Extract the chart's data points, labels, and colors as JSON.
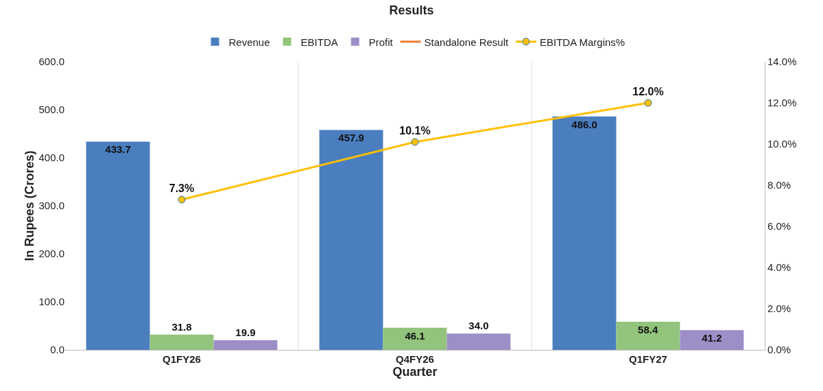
{
  "chart_data": {
    "type": "bar",
    "title": "Results",
    "xlabel": "Quarter",
    "ylabel": "In Rupees (Crores)",
    "categories": [
      "Q1FY26",
      "Q4FY26",
      "Q1FY27"
    ],
    "series": [
      {
        "name": "Revenue",
        "color": "#4a7ebf",
        "values": [
          433.7,
          457.9,
          486.0
        ],
        "value_labels": [
          "433.7",
          "457.9",
          "486.0"
        ]
      },
      {
        "name": "EBITDA",
        "color": "#93c47d",
        "values": [
          31.8,
          46.1,
          58.4
        ],
        "value_labels": [
          "31.8",
          "46.1",
          "58.4"
        ]
      },
      {
        "name": "Profit",
        "color": "#9d8ec7",
        "values": [
          19.9,
          34.0,
          41.2
        ],
        "value_labels": [
          "19.9",
          "34.0",
          "41.2"
        ]
      },
      {
        "name": "Standalone Result",
        "type": "line",
        "color": "#ed7d31",
        "values": [
          null,
          null,
          null
        ]
      },
      {
        "name": "EBITDA Margins%",
        "type": "line",
        "axis": "y2",
        "color": "#ffc000",
        "marker": "circle",
        "values": [
          7.3,
          10.1,
          12.0
        ],
        "value_labels": [
          "7.3%",
          "10.1%",
          "12.0%"
        ]
      }
    ],
    "ylim": [
      0,
      600
    ],
    "yticks": [
      {
        "value": 0,
        "label": "0.0"
      },
      {
        "value": 100,
        "label": "100.0"
      },
      {
        "value": 200,
        "label": "200.0"
      },
      {
        "value": 300,
        "label": "300.0"
      },
      {
        "value": 400,
        "label": "400.0"
      },
      {
        "value": 500,
        "label": "500.0"
      },
      {
        "value": 600,
        "label": "600.0"
      }
    ],
    "y2lim": [
      0,
      14
    ],
    "y2ticks": [
      {
        "value": 0,
        "label": "0.0%"
      },
      {
        "value": 2,
        "label": "2.0%"
      },
      {
        "value": 4,
        "label": "4.0%"
      },
      {
        "value": 6,
        "label": "6.0%"
      },
      {
        "value": 8,
        "label": "8.0%"
      },
      {
        "value": 10,
        "label": "10.0%"
      },
      {
        "value": 12,
        "label": "12.0%"
      },
      {
        "value": 14,
        "label": "14.0%"
      }
    ],
    "grid": "x",
    "legend": "top"
  }
}
